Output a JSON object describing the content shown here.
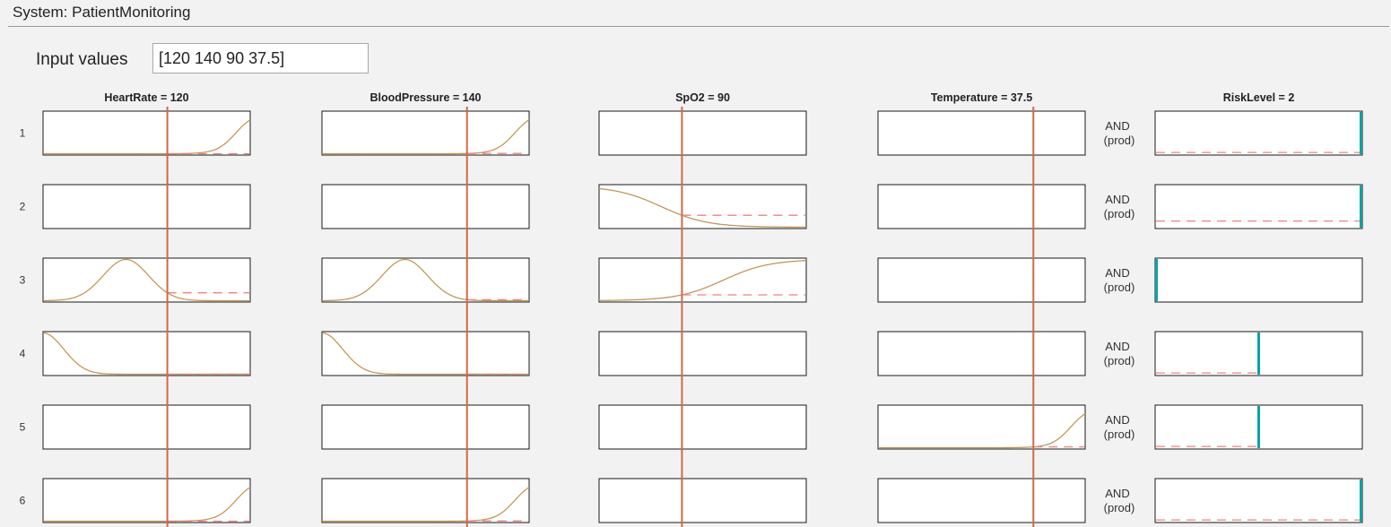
{
  "system": {
    "title": "System: PatientMonitoring"
  },
  "input": {
    "label": "Input values",
    "value": "[120 140 90 37.5]"
  },
  "columns": [
    {
      "title": "HeartRate = 120",
      "range": [
        0,
        200
      ],
      "value": 120
    },
    {
      "title": "BloodPressure = 140",
      "range": [
        0,
        200
      ],
      "value": 140
    },
    {
      "title": "SpO2 = 90",
      "range": [
        50,
        150
      ],
      "value": 90
    },
    {
      "title": "Temperature = 37.5",
      "range": [
        0,
        50
      ],
      "value": 37.5
    }
  ],
  "output": {
    "title": "RiskLevel = 2",
    "range": [
      0,
      3
    ],
    "value": 2
  },
  "rules": [
    {
      "num": "1",
      "op_line1": "AND",
      "op_line2": "(prod)",
      "mfs": [
        {
          "type": "sigmoid",
          "center": 0.93,
          "slope": 22
        },
        {
          "type": "sigmoid",
          "center": 0.93,
          "slope": 22
        },
        null,
        null
      ],
      "activation": 0.03,
      "output_bar": 3
    },
    {
      "num": "2",
      "op_line1": "AND",
      "op_line2": "(prod)",
      "mfs": [
        null,
        null,
        {
          "type": "sigmoid",
          "center": 0.3,
          "slope": -9
        },
        null
      ],
      "activation": 0.15,
      "output_bar": 3
    },
    {
      "num": "3",
      "op_line1": "AND",
      "op_line2": "(prod)",
      "mfs": [
        {
          "type": "gauss",
          "center": 0.4,
          "sigma": 0.11
        },
        {
          "type": "gauss",
          "center": 0.4,
          "sigma": 0.11
        },
        {
          "type": "sigmoid",
          "center": 0.6,
          "slope": 9
        },
        null
      ],
      "activation": 0.0,
      "output_bar": 0
    },
    {
      "num": "4",
      "op_line1": "AND",
      "op_line2": "(prod)",
      "mfs": [
        {
          "type": "gauss",
          "center": 0.0,
          "sigma": 0.1
        },
        {
          "type": "gauss",
          "center": 0.0,
          "sigma": 0.1
        },
        null,
        null
      ],
      "activation": 0.03,
      "output_bar": 1.5
    },
    {
      "num": "5",
      "op_line1": "AND",
      "op_line2": "(prod)",
      "mfs": [
        null,
        null,
        null,
        {
          "type": "sigmoid",
          "center": 0.93,
          "slope": 22
        }
      ],
      "activation": 0.03,
      "output_bar": 1.5
    },
    {
      "num": "6",
      "op_line1": "AND",
      "op_line2": "(prod)",
      "mfs": [
        {
          "type": "sigmoid",
          "center": 0.93,
          "slope": 22
        },
        {
          "type": "sigmoid",
          "center": 0.93,
          "slope": 22
        },
        null,
        null
      ],
      "activation": 0.03,
      "output_bar": 3
    }
  ],
  "colors": {
    "mf_curve": "#c9a35a",
    "input_line": "#cf6a45",
    "activation_dash": "#f08080",
    "output_bar": "#0aa3a3"
  }
}
